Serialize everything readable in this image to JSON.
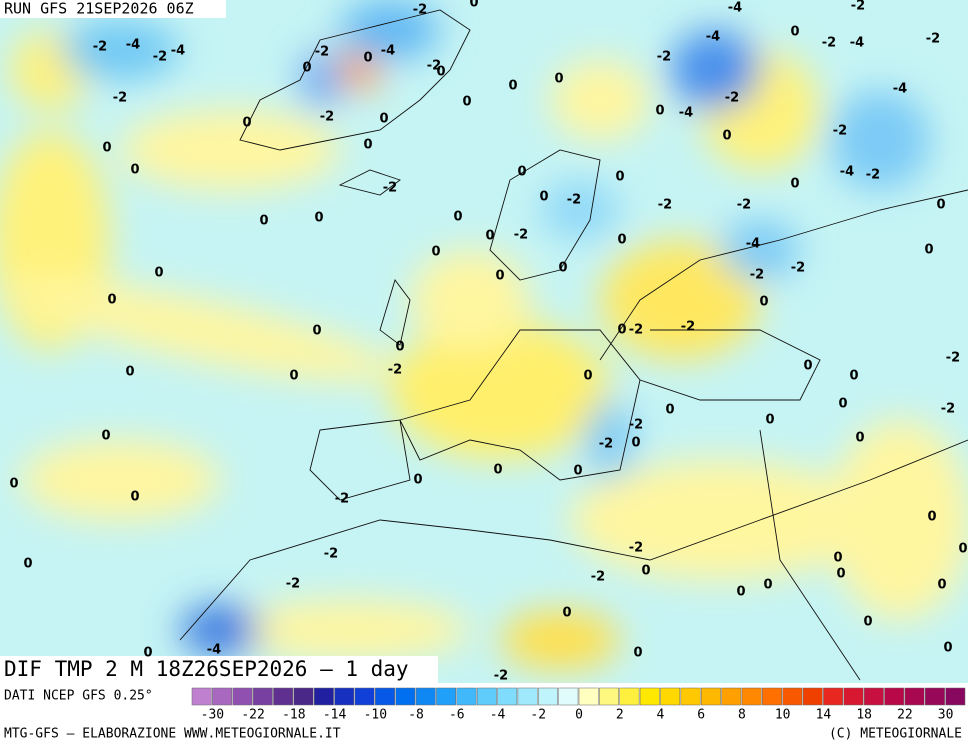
{
  "header": {
    "run": "RUN GFS 21SEP2026 06Z"
  },
  "map": {
    "title": "DIF TMP 2 M 18Z26SEP2026 — 1 day",
    "labels": [
      "-2",
      "0",
      "-4",
      "-2",
      "-2",
      "-4",
      "-2",
      "-4",
      "-2",
      "0",
      "0",
      "-4",
      "-2",
      "0",
      "-4",
      "0",
      "-2",
      "-4",
      "-2",
      "-2",
      "-2",
      "0",
      "0",
      "0",
      "0",
      "-4",
      "-2",
      "-4",
      "0",
      "-2",
      "0",
      "0",
      "-2",
      "0",
      "0",
      "0",
      "-2",
      "0",
      "0",
      "-4",
      "-2",
      "0",
      "0",
      "-2",
      "-2",
      "-2",
      "0",
      "0",
      "0",
      "0",
      "-2",
      "0",
      "-4",
      "0",
      "0",
      "0",
      "0",
      "0",
      "0",
      "-2",
      "-2",
      "0",
      "0",
      "0",
      "0",
      "-2",
      "-2",
      "0",
      "0",
      "-2",
      "0",
      "0",
      "-2",
      "0",
      "0",
      "0",
      "0",
      "-2",
      "0",
      "0",
      "-2",
      "-2",
      "0",
      "0",
      "0",
      "0",
      "0",
      "0",
      "0",
      "-2",
      "0",
      "-2",
      "-2",
      "0",
      "0",
      "0",
      "0",
      "-2",
      "0",
      "0",
      "-2",
      "0",
      "0",
      "0",
      "0",
      "-4",
      "0",
      "0",
      "0",
      "-2"
    ]
  },
  "colorbar": {
    "source": "DATI NCEP GFS 0.25°",
    "colors": [
      "#c080d0",
      "#a868c0",
      "#9050b0",
      "#7840a0",
      "#603090",
      "#4a2888",
      "#2020a0",
      "#1830c0",
      "#1040d8",
      "#0858e8",
      "#0070f0",
      "#1088f4",
      "#20a0f8",
      "#40b8fa",
      "#60ccfc",
      "#80dcfc",
      "#a0e8fc",
      "#c0f4fc",
      "#e0fcfc",
      "#ffffc0",
      "#fff880",
      "#fff040",
      "#ffe800",
      "#ffd800",
      "#ffc800",
      "#ffb800",
      "#ffa000",
      "#ff8800",
      "#ff7000",
      "#f85800",
      "#f04000",
      "#e82820",
      "#d81830",
      "#c81040",
      "#b80848",
      "#a80850",
      "#980858",
      "#880860"
    ],
    "labels": [
      -30,
      -22,
      -18,
      -14,
      -10,
      -8,
      -6,
      -4,
      -2,
      0,
      2,
      4,
      6,
      8,
      10,
      14,
      18,
      22,
      30
    ]
  },
  "footer": {
    "left": "MTG-GFS — ELABORAZIONE WWW.METEOGIORNALE.IT",
    "right": "(C) METEOGIORNALE"
  }
}
